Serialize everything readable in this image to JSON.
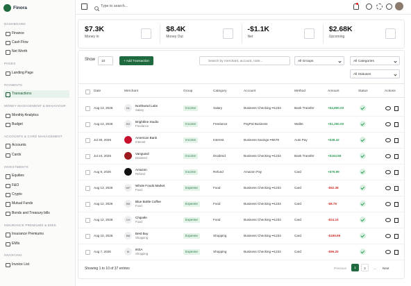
{
  "sidebar": {
    "brand": "Finora",
    "sections": [
      {
        "title": "DASHBOARD",
        "items": [
          "Finance",
          "Cash Flow",
          "Net Worth"
        ]
      },
      {
        "title": "PAGES",
        "items": [
          "Landing Page"
        ]
      },
      {
        "title": "PAYMENTS",
        "items": [
          "Transactions"
        ]
      },
      {
        "title": "MONEY MANAGEMENT & BEHAVIOUR",
        "items": [
          "Monthly Analytics",
          "Budget"
        ]
      },
      {
        "title": "ACCOUNTS & CARD MANAGEMENT",
        "items": [
          "Accounts",
          "Cards"
        ]
      },
      {
        "title": "INVESTMENTS",
        "items": [
          "Equities",
          "F&O",
          "Crypto",
          "Mutual Funds",
          "Bonds and Treasury bills"
        ]
      },
      {
        "title": "INSURANCE PREMIUMS & EMIS",
        "items": [
          "Insurance Premiums",
          "EMIs"
        ]
      },
      {
        "title": "INVOICING",
        "items": [
          "Invoice List"
        ]
      }
    ],
    "active": "Transactions"
  },
  "topbar": {
    "search_placeholder": "Type to search..."
  },
  "stats": [
    {
      "value": "$7.3K",
      "label": "Money In"
    },
    {
      "value": "$8.4K",
      "label": "Money Out"
    },
    {
      "value": "-$1.1K",
      "label": "Net"
    },
    {
      "value": "$2.68K",
      "label": "Upcoming"
    }
  ],
  "controls": {
    "show_label": "Show",
    "page_size": "10",
    "add_button": "+ Add Transaction",
    "search_placeholder": "Search by merchant, account, note...",
    "filters": [
      "All Groups",
      "All Categories",
      "All Statuses"
    ]
  },
  "table": {
    "columns": [
      "Date",
      "Merchant",
      "Group",
      "Category",
      "Account",
      "Method",
      "Amount",
      "Status",
      "Actions"
    ],
    "rows": [
      {
        "date": "Aug 13, 2026",
        "initials": "NL",
        "merchant": "Northwind Labs",
        "subtitle": "Salary",
        "group": "Income",
        "category": "Salary",
        "account": "Business Checking ••1234",
        "method": "Bank Transfer",
        "amount": "+$4,850.00",
        "amount_color": "#2e9e58"
      },
      {
        "date": "Aug 13, 2026",
        "initials": "BS",
        "merchant": "Brightline Studio",
        "subtitle": "Freelance",
        "group": "Income",
        "category": "Freelance",
        "account": "PayPal Business",
        "method": "Wallet",
        "amount": "+$1,250.00",
        "amount_color": "#2e9e58"
      },
      {
        "date": "Jul 30, 2026",
        "avatar_color": "#c8102e",
        "merchant": "American Bank",
        "subtitle": "Interest",
        "group": "Income",
        "category": "Interest",
        "account": "Business Savings ••5678",
        "method": "Auto Pay",
        "amount": "+$38.42",
        "amount_color": "#2e9e58"
      },
      {
        "date": "Jul 24, 2026",
        "avatar_color": "#9b1b1f",
        "merchant": "Vanguard",
        "subtitle": "Dividend",
        "group": "Income",
        "category": "Dividend",
        "account": "Business Checking ••1234",
        "method": "Bank Transfer",
        "amount": "+$164.98",
        "amount_color": "#2e9e58"
      },
      {
        "date": "Aug 9, 2026",
        "avatar_color": "#111111",
        "merchant": "Amazon",
        "subtitle": "Refund",
        "group": "Income",
        "category": "Refund",
        "account": "Amazon Pay",
        "method": "Card",
        "amount": "+$79.99",
        "amount_color": "#2e9e58"
      },
      {
        "date": "Aug 13, 2026",
        "initials": "WF",
        "merchant": "Whole Foods Market",
        "subtitle": "Food",
        "group": "Expense",
        "category": "Food",
        "account": "Business Checking ••1234",
        "method": "Card",
        "amount": "-$62.38",
        "amount_color": "#d0312d"
      },
      {
        "date": "Aug 12, 2026",
        "initials": "BB",
        "merchant": "Blue Bottle Coffee",
        "subtitle": "Food",
        "group": "Expense",
        "category": "Food",
        "account": "Business Checking ••1234",
        "method": "Card",
        "amount": "-$8.75",
        "amount_color": "#d0312d"
      },
      {
        "date": "Aug 12, 2026",
        "initials": "CH",
        "merchant": "Chipotle",
        "subtitle": "Food",
        "group": "Expense",
        "category": "Food",
        "account": "Business Checking ••1234",
        "method": "Card",
        "amount": "-$24.10",
        "amount_color": "#d0312d"
      },
      {
        "date": "Aug 10, 2026",
        "initials": "BB",
        "merchant": "Best Buy",
        "subtitle": "Shopping",
        "group": "Expense",
        "category": "Shopping",
        "account": "Business Checking ••1234",
        "method": "Card",
        "amount": "-$189.99",
        "amount_color": "#d0312d"
      },
      {
        "date": "Aug 7, 2026",
        "initials": "IK",
        "merchant": "IKEA",
        "subtitle": "Shopping",
        "group": "Expense",
        "category": "Shopping",
        "account": "Business Checking ••1234",
        "method": "Card",
        "amount": "-$96.20",
        "amount_color": "#d0312d"
      }
    ]
  },
  "footer": {
    "summary": "Showing 1 to 10 of 37 entries",
    "previous": "Previous",
    "pages": [
      "1",
      "2"
    ],
    "ellipsis": "...",
    "next": "Next"
  }
}
